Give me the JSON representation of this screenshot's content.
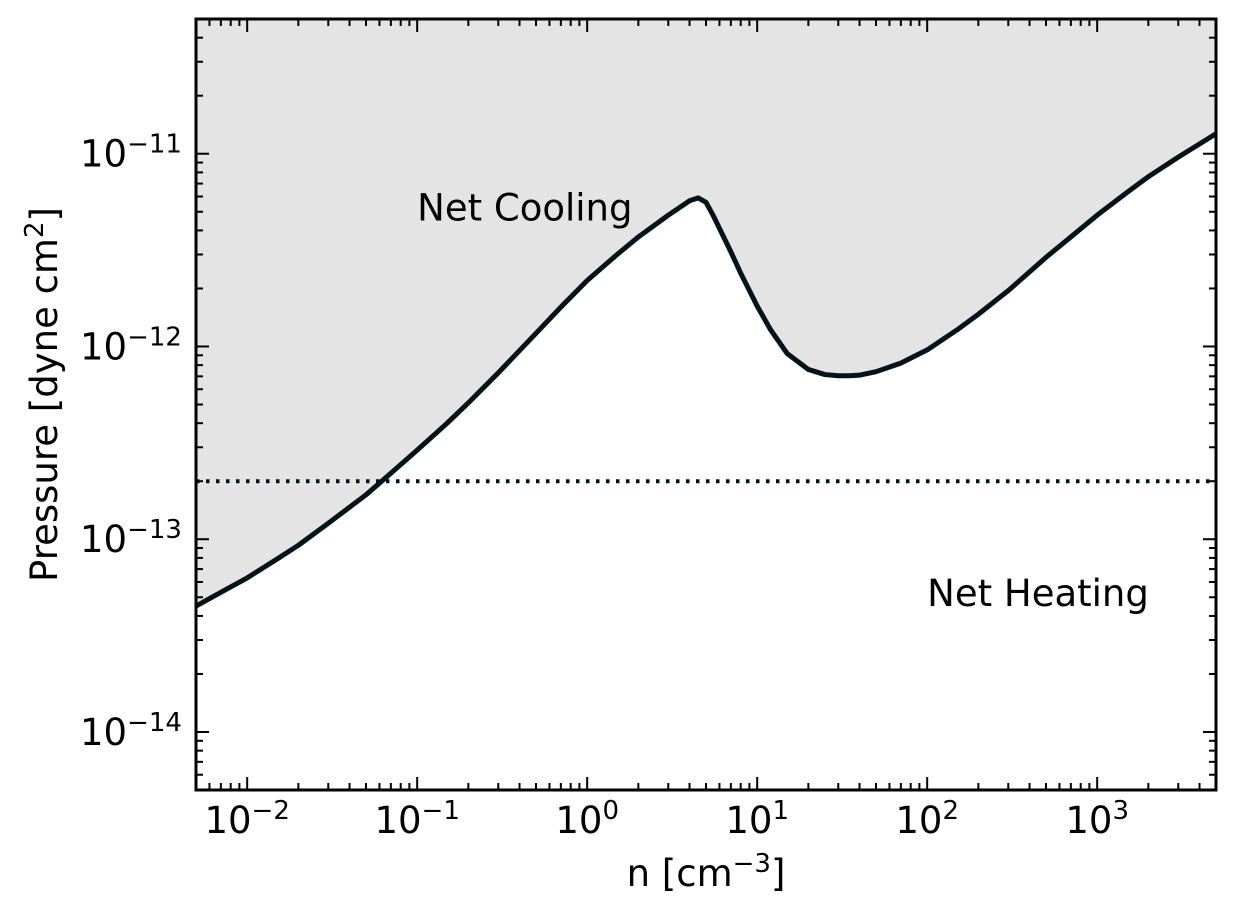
{
  "chart_data": {
    "type": "line",
    "xscale": "log",
    "yscale": "log",
    "xlim": [
      0.005,
      5000
    ],
    "ylim": [
      5e-15,
      5e-11
    ],
    "xlabel": {
      "text": "n [cm",
      "sup": "−3",
      "suffix": "]"
    },
    "ylabel": {
      "text": "Pressure [dyne cm",
      "sup": "2",
      "suffix": "]"
    },
    "x_ticks": [
      {
        "value": 0.01,
        "base": "10",
        "exp": "−2"
      },
      {
        "value": 0.1,
        "base": "10",
        "exp": "−1"
      },
      {
        "value": 1,
        "base": "10",
        "exp": "0"
      },
      {
        "value": 10,
        "base": "10",
        "exp": "1"
      },
      {
        "value": 100,
        "base": "10",
        "exp": "2"
      },
      {
        "value": 1000,
        "base": "10",
        "exp": "3"
      }
    ],
    "y_ticks": [
      {
        "value": 1e-14,
        "base": "10",
        "exp": "−14"
      },
      {
        "value": 1e-13,
        "base": "10",
        "exp": "−13"
      },
      {
        "value": 1e-12,
        "base": "10",
        "exp": "−12"
      },
      {
        "value": 1e-11,
        "base": "10",
        "exp": "−11"
      }
    ],
    "series": [
      {
        "color": "#03131a",
        "x": [
          0.005,
          0.007,
          0.01,
          0.015,
          0.02,
          0.03,
          0.05,
          0.07,
          0.1,
          0.15,
          0.2,
          0.3,
          0.5,
          0.7,
          1,
          1.5,
          2,
          3,
          4,
          4.5,
          5,
          5.5,
          6,
          7,
          8,
          10,
          12,
          15,
          20,
          25,
          30,
          35,
          40,
          50,
          70,
          100,
          150,
          200,
          300,
          500,
          700,
          1000,
          1500,
          2000,
          3000,
          5000
        ],
        "y": [
          4.5e-14,
          5.3e-14,
          6.3e-14,
          7.9e-14,
          9.3e-14,
          1.21e-13,
          1.7e-13,
          2.2e-13,
          2.9e-13,
          4e-13,
          5.1e-13,
          7.3e-13,
          1.17e-12,
          1.6e-12,
          2.2e-12,
          3e-12,
          3.7e-12,
          4.8e-12,
          5.7e-12,
          5.9e-12,
          5.6e-12,
          4.8e-12,
          4.1e-12,
          3.1e-12,
          2.4e-12,
          1.62e-12,
          1.22e-12,
          9.2e-13,
          7.6e-13,
          7.15e-13,
          7.05e-13,
          7.05e-13,
          7.1e-13,
          7.4e-13,
          8.2e-13,
          9.6e-13,
          1.22e-12,
          1.47e-12,
          1.95e-12,
          2.9e-12,
          3.7e-12,
          4.8e-12,
          6.3e-12,
          7.6e-12,
          9.6e-12,
          1.27e-11
        ]
      }
    ],
    "threshold": {
      "y": 2e-13,
      "style": "dotted",
      "color": "#03131a"
    },
    "fill_above_curve": "#e4e4e4",
    "annotations": [
      {
        "text": "Net Cooling",
        "x": 0.1,
        "y": 5.2e-12
      },
      {
        "text": "Net Heating",
        "x": 100,
        "y": 5.2e-14
      }
    ]
  }
}
